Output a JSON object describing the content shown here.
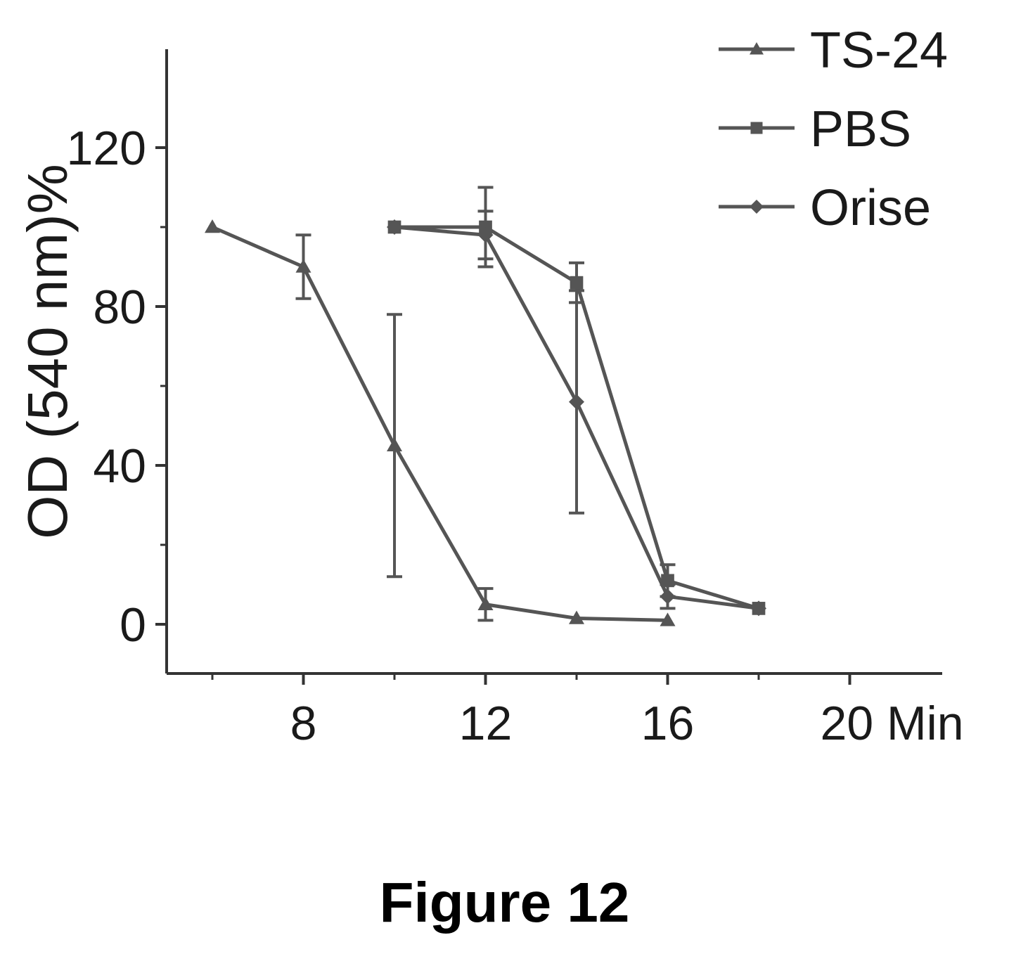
{
  "caption": "Figure 12",
  "chart_data": {
    "type": "line",
    "ylabel": "OD (540 nm)%",
    "xlabel": "",
    "x_tick_labels": [
      "8",
      "12",
      "16",
      "20 Min"
    ],
    "x_ticks": [
      8,
      12,
      16,
      20
    ],
    "y_ticks": [
      0,
      40,
      80,
      120
    ],
    "xlim": [
      5,
      22
    ],
    "ylim": [
      -10,
      120
    ],
    "grid": false,
    "legend": "top-right",
    "series": [
      {
        "name": "TS-24",
        "marker": "triangle",
        "points": [
          {
            "x": 6,
            "y": 100
          },
          {
            "x": 8,
            "y": 90,
            "err": 8
          },
          {
            "x": 10,
            "y": 45,
            "err": 33
          },
          {
            "x": 12,
            "y": 5,
            "err": 4
          },
          {
            "x": 14,
            "y": 1.5
          },
          {
            "x": 16,
            "y": 1
          }
        ]
      },
      {
        "name": "PBS",
        "marker": "square",
        "points": [
          {
            "x": 10,
            "y": 100
          },
          {
            "x": 12,
            "y": 100,
            "err": 10
          },
          {
            "x": 14,
            "y": 86,
            "err": 5
          },
          {
            "x": 16,
            "y": 11,
            "err": 4
          },
          {
            "x": 18,
            "y": 4
          }
        ]
      },
      {
        "name": "Orise",
        "marker": "diamond",
        "points": [
          {
            "x": 10,
            "y": 100
          },
          {
            "x": 12,
            "y": 98,
            "err": 6
          },
          {
            "x": 14,
            "y": 56,
            "err": 28
          },
          {
            "x": 16,
            "y": 7,
            "err": 3
          },
          {
            "x": 18,
            "y": 4
          }
        ]
      }
    ],
    "line_color": "#555555"
  }
}
